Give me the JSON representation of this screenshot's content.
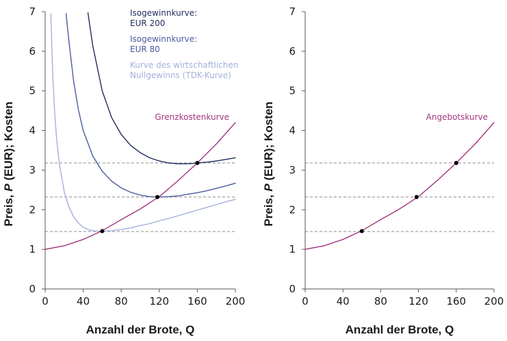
{
  "chart_data": [
    {
      "type": "line",
      "panel": "left",
      "xlabel": "Anzahl der Brote, Q",
      "ylabel_parts": [
        "Preis, ",
        "P",
        " (EUR); Kosten"
      ],
      "xlim": [
        0,
        200
      ],
      "ylim": [
        0,
        7
      ],
      "xticks": [
        "0",
        "40",
        "80",
        "120",
        "160",
        "200"
      ],
      "yticks": [
        "0",
        "1",
        "2",
        "3",
        "4",
        "5",
        "6",
        "7"
      ],
      "grid": false,
      "legend_position": "top-center",
      "series": [
        {
          "name": "Isogewinnkurve: EUR 200",
          "legend_lines": [
            "Isogewinnkurve:",
            "EUR 200"
          ],
          "color": "#1f2a5c",
          "x": [
            45,
            50,
            60,
            70,
            80,
            90,
            100,
            110,
            120,
            130,
            140,
            150,
            160,
            170,
            180,
            190,
            200
          ],
          "y": [
            6.97,
            6.15,
            5.0,
            4.32,
            3.9,
            3.62,
            3.44,
            3.31,
            3.23,
            3.18,
            3.16,
            3.16,
            3.18,
            3.2,
            3.23,
            3.27,
            3.31
          ]
        },
        {
          "name": "Isogewinnkurve: EUR 80",
          "legend_lines": [
            "Isogewinnkurve:",
            "EUR 80"
          ],
          "color": "#4a5aa0",
          "x": [
            22,
            25,
            30,
            35,
            40,
            50,
            60,
            70,
            80,
            90,
            100,
            110,
            120,
            130,
            140,
            150,
            160,
            170,
            180,
            190,
            200
          ],
          "y": [
            6.95,
            6.25,
            5.23,
            4.52,
            4.0,
            3.36,
            2.97,
            2.72,
            2.55,
            2.44,
            2.37,
            2.33,
            2.32,
            2.33,
            2.35,
            2.39,
            2.43,
            2.48,
            2.54,
            2.6,
            2.67
          ]
        },
        {
          "name": "Kurve des wirtschaftlichen Nullgewinns (TDK-Kurve)",
          "legend_lines": [
            "Kurve des wirtschaftlichen",
            "Nullgewinns (TDK-Kurve)"
          ],
          "color": "#a3b0dc",
          "x": [
            6,
            7,
            8,
            10,
            12,
            15,
            20,
            25,
            30,
            35,
            40,
            45,
            50,
            55,
            60,
            70,
            80,
            90,
            100,
            110,
            120,
            130,
            140,
            150,
            160,
            170,
            180,
            190,
            200
          ],
          "y": [
            6.95,
            6.1,
            5.4,
            4.45,
            3.8,
            3.15,
            2.46,
            2.07,
            1.82,
            1.66,
            1.56,
            1.5,
            1.47,
            1.46,
            1.46,
            1.47,
            1.5,
            1.54,
            1.6,
            1.65,
            1.72,
            1.78,
            1.85,
            1.92,
            1.99,
            2.06,
            2.13,
            2.2,
            2.26
          ]
        },
        {
          "name": "Grenzkostenkurve",
          "color": "#a3357f",
          "x": [
            0,
            20,
            40,
            60,
            80,
            100,
            120,
            140,
            160,
            180,
            200
          ],
          "y": [
            1.0,
            1.09,
            1.25,
            1.47,
            1.75,
            2.02,
            2.33,
            2.74,
            3.18,
            3.66,
            4.2
          ]
        }
      ],
      "curve_label": "Grenzkostenkurve",
      "dashed_levels": [
        1.45,
        2.32,
        3.18
      ],
      "points": [
        {
          "x": 60,
          "y": 1.46
        },
        {
          "x": 118,
          "y": 2.32
        },
        {
          "x": 160,
          "y": 3.18
        }
      ]
    },
    {
      "type": "line",
      "panel": "right",
      "xlabel": "Anzahl der Brote, Q",
      "ylabel_parts": [
        "Preis, ",
        "P",
        " (EUR); Kosten"
      ],
      "xlim": [
        0,
        200
      ],
      "ylim": [
        0,
        7
      ],
      "xticks": [
        "0",
        "40",
        "80",
        "120",
        "160",
        "200"
      ],
      "yticks": [
        "0",
        "1",
        "2",
        "3",
        "4",
        "5",
        "6",
        "7"
      ],
      "grid": false,
      "series": [
        {
          "name": "Angebotskurve",
          "color": "#a3357f",
          "x": [
            0,
            20,
            40,
            60,
            80,
            100,
            120,
            140,
            160,
            180,
            200
          ],
          "y": [
            1.0,
            1.09,
            1.25,
            1.47,
            1.75,
            2.02,
            2.33,
            2.74,
            3.18,
            3.66,
            4.2
          ]
        }
      ],
      "curve_label": "Angebotskurve",
      "dashed_levels": [
        1.45,
        2.32,
        3.18
      ],
      "points": [
        {
          "x": 60,
          "y": 1.46
        },
        {
          "x": 118,
          "y": 2.32
        },
        {
          "x": 160,
          "y": 3.18
        }
      ]
    }
  ],
  "colors": {
    "axis": "#555555",
    "dashed": "#8a8a8a",
    "point": "#000000",
    "text": "#1a1a1a"
  }
}
